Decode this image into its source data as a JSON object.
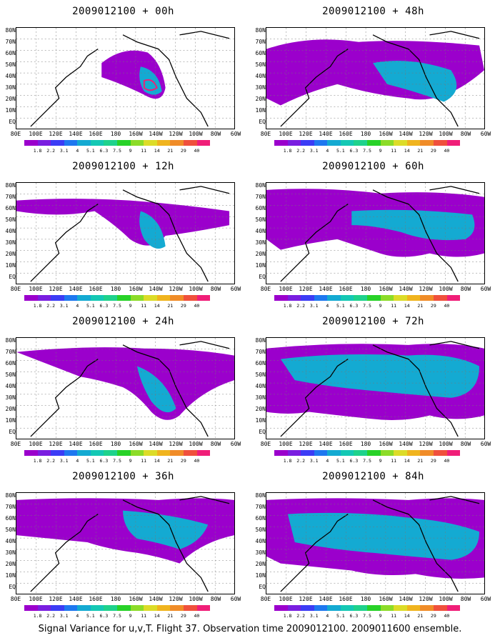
{
  "panels": [
    {
      "title": "2009012100 + 00h"
    },
    {
      "title": "2009012100 + 48h"
    },
    {
      "title": "2009012100 + 12h"
    },
    {
      "title": "2009012100 + 60h"
    },
    {
      "title": "2009012100 + 24h"
    },
    {
      "title": "2009012100 + 72h"
    },
    {
      "title": "2009012100 + 36h"
    },
    {
      "title": "2009012100 + 84h"
    }
  ],
  "lat_labels": [
    "80N",
    "70N",
    "60N",
    "50N",
    "40N",
    "30N",
    "20N",
    "10N",
    "EQ"
  ],
  "lon_labels": [
    "80E",
    "100E",
    "120E",
    "140E",
    "160E",
    "180",
    "160W",
    "140W",
    "120W",
    "100W",
    "80W",
    "60W"
  ],
  "colorbar": {
    "labels": [
      "1.8",
      "2.2",
      "3.1",
      "4",
      "5.1",
      "6.3",
      "7.5",
      "9",
      "11",
      "14",
      "21",
      "29",
      "40"
    ],
    "colors": [
      "#9b00cc",
      "#7a1ee0",
      "#3c3cf5",
      "#1e78f0",
      "#14aad2",
      "#14c8b4",
      "#1ed28c",
      "#28d228",
      "#8cdc28",
      "#dcdc28",
      "#f0b41e",
      "#f08c28",
      "#f0503c",
      "#f01e78"
    ]
  },
  "caption": "Signal Variance for u,v,T. Flight 37. Observation time 2009012100. 2009011600 ensemble."
}
